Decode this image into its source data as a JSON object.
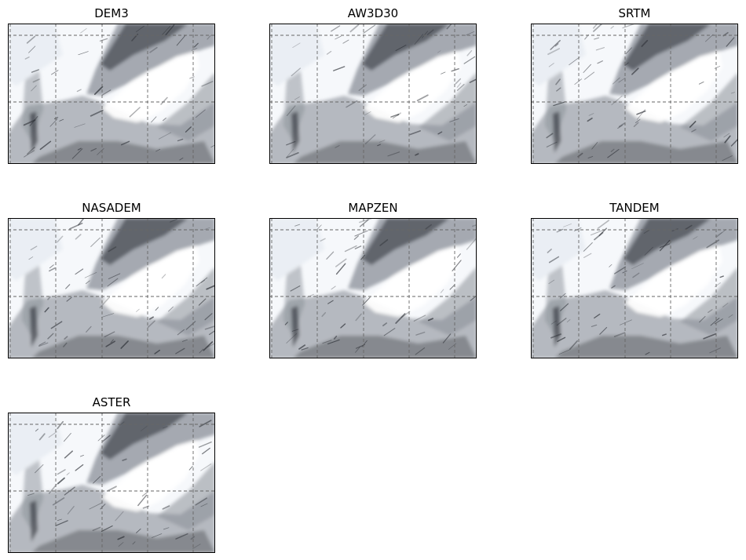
{
  "panels": [
    {
      "title": "DEM3"
    },
    {
      "title": "AW3D30"
    },
    {
      "title": "SRTM"
    },
    {
      "title": "NASADEM"
    },
    {
      "title": "MAPZEN"
    },
    {
      "title": "TANDEM"
    },
    {
      "title": "ASTER"
    }
  ],
  "style": {
    "grid_color": "#666666",
    "frame_color": "#000000",
    "shade_dark": "#2a2d33",
    "shade_mid": "#8a8f98",
    "shade_light": "#e9edf3"
  }
}
